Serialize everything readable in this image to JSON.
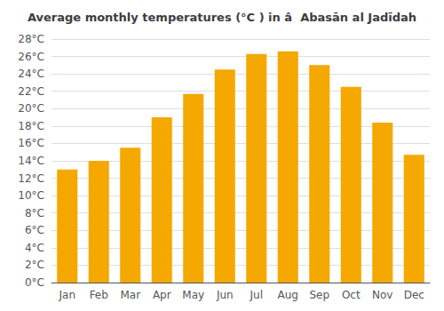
{
  "chart_data": {
    "type": "bar",
    "title": "Average monthly temperatures (°C ) in â  Abasān al Jadīdah",
    "categories": [
      "Jan",
      "Feb",
      "Mar",
      "Apr",
      "May",
      "Jun",
      "Jul",
      "Aug",
      "Sep",
      "Oct",
      "Nov",
      "Dec"
    ],
    "values": [
      13,
      14,
      15.5,
      19,
      21.7,
      24.5,
      26.3,
      26.6,
      25,
      22.5,
      18.4,
      14.7
    ],
    "color": "#F5A800",
    "ylim": [
      0,
      28
    ],
    "yticks": [
      {
        "value": 0,
        "label": "0°C"
      },
      {
        "value": 2,
        "label": "2°C"
      },
      {
        "value": 4,
        "label": "4°C"
      },
      {
        "value": 6,
        "label": "6°C"
      },
      {
        "value": 8,
        "label": "8°C"
      },
      {
        "value": 10,
        "label": "10°C"
      },
      {
        "value": 12,
        "label": "12°C"
      },
      {
        "value": 14,
        "label": "14°C"
      },
      {
        "value": 16,
        "label": "16°C"
      },
      {
        "value": 18,
        "label": "18°C"
      },
      {
        "value": 20,
        "label": "20°C"
      },
      {
        "value": 22,
        "label": "22°C"
      },
      {
        "value": 24,
        "label": "24°C"
      },
      {
        "value": 26,
        "label": "26°C"
      },
      {
        "value": 28,
        "label": "28°C"
      }
    ],
    "grid": true
  }
}
